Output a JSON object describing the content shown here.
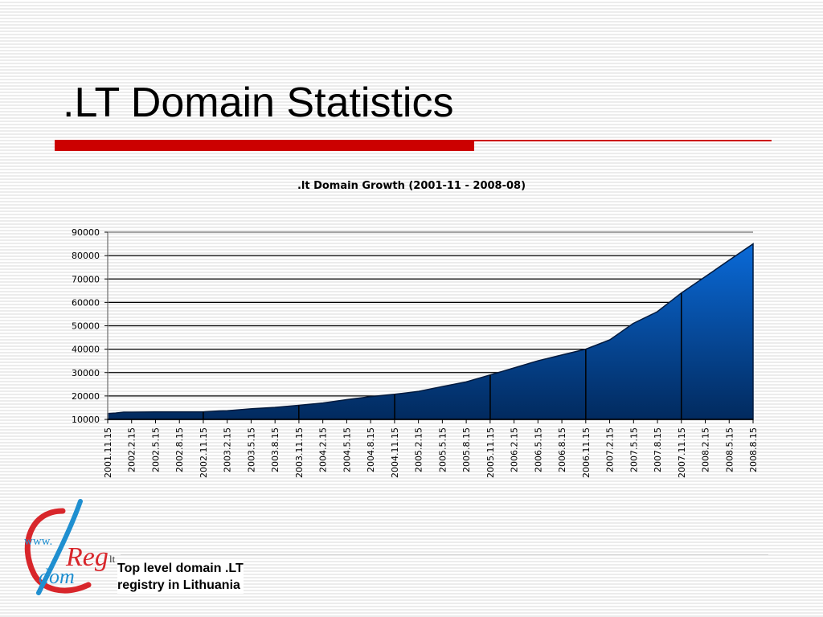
{
  "slide": {
    "title": ".LT Domain Statistics",
    "accent_color": "#cc0000",
    "line_color": "#cc0000"
  },
  "footer": {
    "tagline_line1": "Top level domain .LT",
    "tagline_line2": "registry in Lithuania"
  },
  "logo": {
    "www_text": "www.",
    "lt_text": "lt",
    "reg_text": "Reg",
    "dom_text": "dom",
    "colors": {
      "red": "#d8262b",
      "blue": "#1f8fd0"
    }
  },
  "chart_data": {
    "type": "area",
    "title": ".lt Domain Growth (2001-11 - 2008-08)",
    "xlabel": "",
    "ylabel": "",
    "ylim": [
      10000,
      90000
    ],
    "y_ticks": [
      10000,
      20000,
      30000,
      40000,
      50000,
      60000,
      70000,
      80000,
      90000
    ],
    "y_tick_labels": [
      "10000",
      "20000",
      "30000",
      "40000",
      "50000",
      "60000",
      "70000",
      "80000",
      "90000"
    ],
    "grid": true,
    "fill_colors": {
      "top": "#0a6ad8",
      "bottom": "#022a5e"
    },
    "x_tick_labels": [
      "2001.11.15",
      "2002.2.15",
      "2002.5.15",
      "2002.8.15",
      "2002.11.15",
      "2003.2.15",
      "2003.5.15",
      "2003.8.15",
      "2003.11.15",
      "2004.2.15",
      "2004.5.15",
      "2004.8.15",
      "2004.11.15",
      "2005.2.15",
      "2005.5.15",
      "2005.8.15",
      "2005.11.15",
      "2006.2.15",
      "2006.5.15",
      "2006.8.15",
      "2006.11.15",
      "2007.2.15",
      "2007.5.15",
      "2007.8.15",
      "2007.11.15",
      "2008.2.15",
      "2008.5.15",
      "2008.8.15"
    ],
    "x_start": "2001-11-15",
    "x_end": "2008-08-15",
    "series": [
      {
        "values": [
          [
            "2001-11-15",
            12500
          ],
          [
            "2001-12-15",
            12700
          ],
          [
            "2002-01-15",
            13100
          ],
          [
            "2002-02-15",
            13100
          ],
          [
            "2002-05-15",
            13200
          ],
          [
            "2002-08-15",
            13200
          ],
          [
            "2002-11-15",
            13200
          ],
          [
            "2003-01-15",
            13600
          ],
          [
            "2003-02-15",
            13700
          ],
          [
            "2003-05-15",
            14500
          ],
          [
            "2003-08-15",
            15100
          ],
          [
            "2003-11-15",
            16000
          ],
          [
            "2004-02-15",
            17000
          ],
          [
            "2004-05-15",
            18400
          ],
          [
            "2004-08-15",
            19700
          ],
          [
            "2004-11-15",
            20700
          ],
          [
            "2005-02-15",
            22000
          ],
          [
            "2005-05-15",
            24000
          ],
          [
            "2005-08-15",
            26000
          ],
          [
            "2005-11-15",
            29000
          ],
          [
            "2006-02-15",
            32000
          ],
          [
            "2006-05-15",
            35000
          ],
          [
            "2006-08-15",
            37500
          ],
          [
            "2006-11-15",
            40000
          ],
          [
            "2007-02-15",
            44000
          ],
          [
            "2007-05-15",
            51000
          ],
          [
            "2007-08-15",
            56000
          ],
          [
            "2007-11-15",
            64000
          ],
          [
            "2008-02-15",
            71000
          ],
          [
            "2008-05-15",
            78000
          ],
          [
            "2008-08-15",
            85000
          ]
        ]
      }
    ]
  }
}
